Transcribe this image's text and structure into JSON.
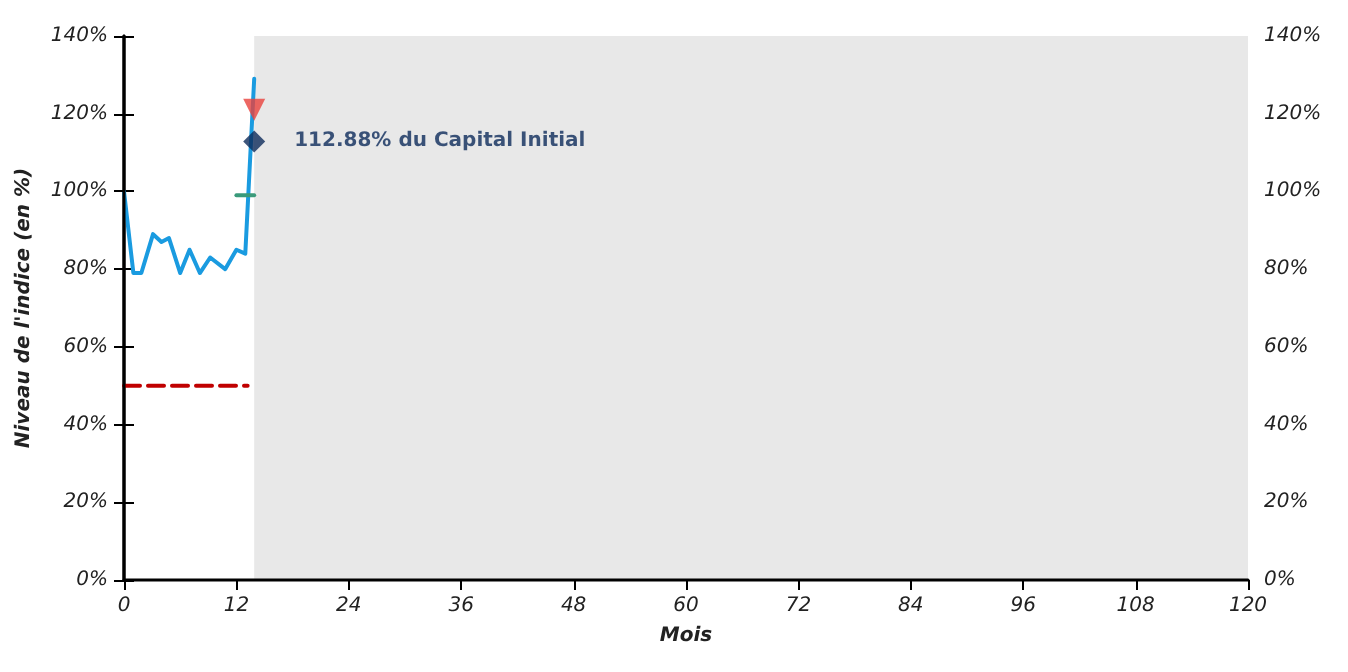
{
  "chart_data": {
    "type": "line",
    "xlabel": "Mois",
    "ylabel": "Niveau de l'indice (en %)",
    "annotations": [
      {
        "text": "112.88% du Capital Initial",
        "x": 13.9,
        "y": 112.88
      }
    ],
    "series": [
      {
        "color": "#1a9be0",
        "x": [
          0,
          1.0,
          1.85,
          3.1,
          4.0,
          4.8,
          6.0,
          7.0,
          8.1,
          9.2,
          10.8,
          12.0,
          12.95,
          13.9
        ],
        "values": [
          100,
          79,
          79,
          89,
          87,
          88,
          79,
          85,
          79,
          83,
          80,
          85,
          84,
          129
        ]
      },
      {
        "color": "#c00000",
        "line_style": "dashed",
        "x": [
          0,
          13.2
        ],
        "values": [
          50,
          50
        ]
      },
      {
        "color": "#3a9a7a",
        "x": [
          12.0,
          13.9
        ],
        "values": [
          99,
          99
        ]
      },
      {
        "type": "scatter",
        "color": "#e8413c",
        "marker": "triangle",
        "x": [
          13.9
        ],
        "values": [
          121
        ]
      },
      {
        "type": "scatter",
        "color": "#0d2a5a",
        "marker": "diamond",
        "x": [
          13.9
        ],
        "values": [
          112.88
        ]
      }
    ],
    "bands": [
      {
        "axis": "x",
        "from": 13.9,
        "to": 120,
        "color": "#e8e8e8"
      }
    ],
    "xlim": [
      0,
      120
    ],
    "xticks": [
      0,
      12,
      24,
      36,
      48,
      60,
      72,
      84,
      96,
      108,
      120
    ],
    "ylim": [
      0,
      140
    ],
    "yticks": [
      {
        "value": 0,
        "label": "0%"
      },
      {
        "value": 20,
        "label": "20%"
      },
      {
        "value": 40,
        "label": "40%"
      },
      {
        "value": 60,
        "label": "60%"
      },
      {
        "value": 80,
        "label": "80%"
      },
      {
        "value": 100,
        "label": "100%"
      },
      {
        "value": 120,
        "label": "120%"
      },
      {
        "value": 140,
        "label": "140%"
      }
    ],
    "grid": false,
    "marker": "none",
    "line_style": "solid"
  }
}
